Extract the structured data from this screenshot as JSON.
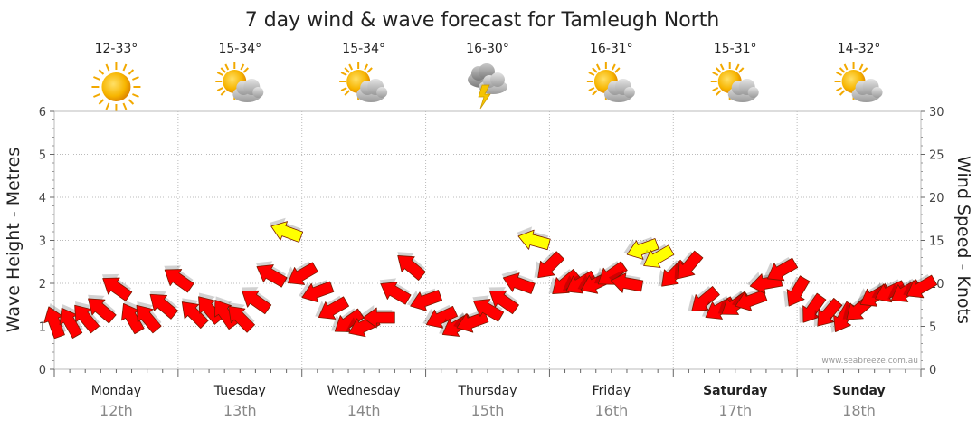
{
  "chart_data": {
    "type": "line",
    "title": "7 day wind & wave forecast for Tamleugh North",
    "ylabel": "Wave Height - Metres",
    "y2label": "Wind Speed - Knots",
    "ylim": [
      0,
      6
    ],
    "y2lim": [
      0,
      30
    ],
    "yticks": [
      "0",
      "1",
      "2",
      "3",
      "4",
      "5",
      "6"
    ],
    "y2ticks": [
      "0",
      "5",
      "10",
      "15",
      "20",
      "25",
      "30"
    ],
    "credit": "www.seabreeze.com.au",
    "days": [
      {
        "name": "Monday",
        "date": "12th",
        "bold": false,
        "temp": "12-33°",
        "icon": "sun"
      },
      {
        "name": "Tuesday",
        "date": "13th",
        "bold": false,
        "temp": "15-34°",
        "icon": "sun-cloud"
      },
      {
        "name": "Wednesday",
        "date": "14th",
        "bold": false,
        "temp": "15-34°",
        "icon": "sun-cloud"
      },
      {
        "name": "Thursday",
        "date": "15th",
        "bold": false,
        "temp": "16-30°",
        "icon": "storm"
      },
      {
        "name": "Friday",
        "date": "16th",
        "bold": false,
        "temp": "16-31°",
        "icon": "sun-cloud"
      },
      {
        "name": "Saturday",
        "date": "17th",
        "bold": true,
        "temp": "15-31°",
        "icon": "sun-cloud"
      },
      {
        "name": "Sunday",
        "date": "18th",
        "bold": true,
        "temp": "14-32°",
        "icon": "sun-cloud"
      }
    ],
    "wind_series": {
      "name": "Wind speed (knots)",
      "x_hours": [
        0,
        3,
        6,
        9,
        12,
        15,
        18,
        21,
        24,
        27,
        30,
        33,
        36,
        39,
        42,
        45,
        48,
        51,
        54,
        57,
        60,
        63,
        66,
        69,
        72,
        75,
        78,
        81,
        84,
        87,
        90,
        93,
        96,
        99,
        102,
        105,
        108,
        111,
        114,
        117,
        120,
        123,
        126,
        129,
        132,
        135,
        138,
        141,
        144,
        147,
        150,
        153,
        156,
        159,
        162,
        165,
        168
      ],
      "knots": [
        5.5,
        5.5,
        6,
        7,
        9.5,
        6,
        6,
        7.5,
        10.5,
        6.5,
        7,
        6.5,
        6,
        8,
        11,
        16,
        11,
        9,
        7,
        5.5,
        5,
        6,
        9,
        12,
        8,
        6,
        5,
        5.5,
        7,
        8,
        10,
        15,
        12,
        10,
        10,
        10,
        11,
        10,
        14,
        13,
        11,
        12,
        8,
        7,
        7.5,
        8,
        10,
        11.5,
        9,
        7,
        6.5,
        6,
        7,
        8.5,
        9,
        9,
        9.5
      ],
      "directions_deg": [
        250,
        240,
        230,
        220,
        215,
        240,
        230,
        220,
        215,
        225,
        230,
        235,
        225,
        215,
        210,
        200,
        150,
        160,
        150,
        145,
        155,
        180,
        210,
        220,
        160,
        155,
        150,
        160,
        210,
        215,
        200,
        195,
        135,
        140,
        150,
        155,
        145,
        190,
        160,
        150,
        135,
        130,
        140,
        150,
        145,
        160,
        170,
        150,
        120,
        125,
        130,
        120,
        140,
        150,
        155,
        150,
        150
      ]
    },
    "series_colors": {
      "light": "#ffff00",
      "strong": "#ff0000"
    }
  }
}
